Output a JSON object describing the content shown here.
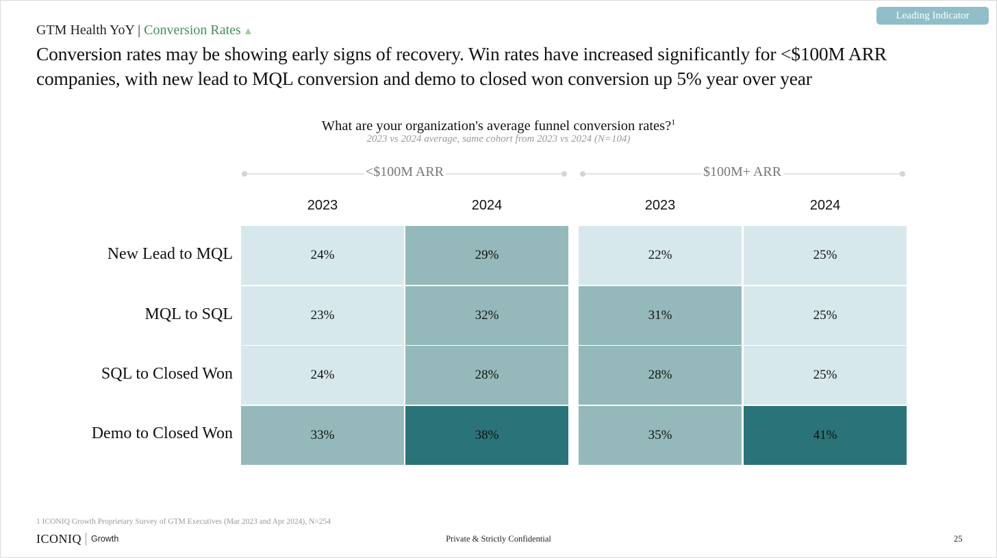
{
  "badge": "Leading Indicator",
  "breadcrumb": {
    "section": "GTM Health YoY",
    "separator": " | ",
    "subsection": "Conversion Rates",
    "trend_icon": "up-triangle-icon"
  },
  "headline": "Conversion rates may be showing early signs of recovery. Win rates have increased significantly for <$100M ARR companies, with new lead to MQL conversion and demo to closed won conversion up 5% year over year",
  "question": {
    "title": "What are your organization's average funnel conversion rates?",
    "footnote_marker": "1",
    "subtitle": "2023 vs 2024 average, same cohort from 2023 vs 2024 (N=104)"
  },
  "chart_data": {
    "type": "heatmap",
    "groups": [
      {
        "name": "<$100M ARR",
        "years": [
          "2023",
          "2024"
        ]
      },
      {
        "name": "$100M+ ARR",
        "years": [
          "2023",
          "2024"
        ]
      }
    ],
    "rows": [
      "New Lead to MQL",
      "MQL to SQL",
      "SQL to Closed Won",
      "Demo to Closed Won"
    ],
    "unit": "%",
    "values": [
      [
        24,
        29,
        22,
        25
      ],
      [
        23,
        32,
        31,
        25
      ],
      [
        24,
        28,
        28,
        25
      ],
      [
        33,
        38,
        35,
        41
      ]
    ],
    "labels": [
      [
        "24%",
        "29%",
        "22%",
        "25%"
      ],
      [
        "23%",
        "32%",
        "31%",
        "25%"
      ],
      [
        "24%",
        "28%",
        "28%",
        "25%"
      ],
      [
        "33%",
        "38%",
        "35%",
        "41%"
      ]
    ],
    "color_scale": {
      "light": "#d7e8ec",
      "medium": "#95b9ba",
      "dark": "#2a7479"
    }
  },
  "footer": {
    "footnote": "1 ICONIQ Growth Proprietary Survey of GTM Executives (Mar 2023 and Apr 2024), N=254",
    "logo": "ICONIQ",
    "logo_sub": "Growth",
    "confidential": "Private & Strictly Confidential",
    "page": "25"
  }
}
